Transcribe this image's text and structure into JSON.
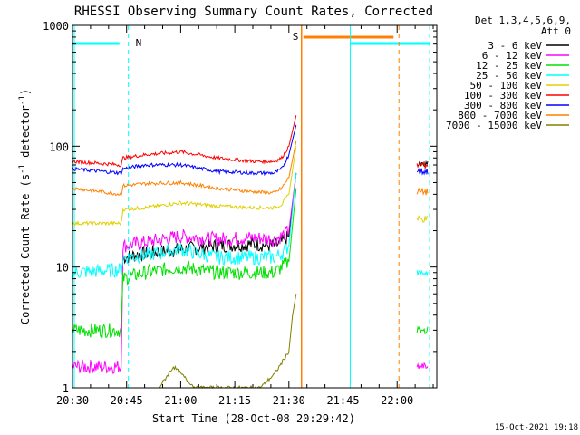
{
  "chart_data": {
    "type": "line",
    "title": "RHESSI Observing Summary Count Rates, Corrected",
    "xlabel": "Start Time (28-Oct-08 20:29:42)",
    "ylabel_pre": "Corrected Count Rate (s",
    "ylabel_sup": "-1",
    "ylabel_mid": " detector",
    "ylabel_sup2": "-1",
    "ylabel_post": ")",
    "yscale": "log",
    "ylim": [
      1,
      1000
    ],
    "xlim_min": [
      0,
      101
    ],
    "x_ticks": [
      {
        "label": "20:30",
        "min": 0
      },
      {
        "label": "20:45",
        "min": 15
      },
      {
        "label": "21:00",
        "min": 30
      },
      {
        "label": "21:15",
        "min": 45
      },
      {
        "label": "21:30",
        "min": 60
      },
      {
        "label": "21:45",
        "min": 75
      },
      {
        "label": "22:00",
        "min": 90
      }
    ],
    "y_ticks": [
      {
        "label": "1",
        "value": 1
      },
      {
        "label": "10",
        "value": 10
      },
      {
        "label": "100",
        "value": 100
      },
      {
        "label": "1000",
        "value": 1000
      }
    ],
    "legend_header": [
      "Det 1,3,4,5,6,9,",
      "Att 0"
    ],
    "series": [
      {
        "name": "3 - 6 keV",
        "color": "#000000",
        "points": [
          [
            14,
            12
          ],
          [
            20,
            13
          ],
          [
            30,
            14
          ],
          [
            40,
            15
          ],
          [
            50,
            15.5
          ],
          [
            56,
            15
          ],
          [
            58,
            16
          ],
          [
            60,
            18
          ],
          [
            62,
            60
          ]
        ]
      },
      {
        "name": "6 - 12 keV",
        "color": "#ff00ff",
        "points": [
          [
            0,
            1.5
          ],
          [
            13.5,
            1.5
          ],
          [
            14,
            15
          ],
          [
            20,
            16
          ],
          [
            30,
            18
          ],
          [
            40,
            17
          ],
          [
            50,
            17.5
          ],
          [
            56,
            17
          ],
          [
            58,
            18
          ],
          [
            60,
            20
          ],
          [
            62,
            60
          ]
        ]
      },
      {
        "name": "12 - 25 keV",
        "color": "#00e000",
        "points": [
          [
            0,
            3
          ],
          [
            13.5,
            3
          ],
          [
            14,
            8
          ],
          [
            20,
            9
          ],
          [
            30,
            10
          ],
          [
            40,
            9
          ],
          [
            50,
            9
          ],
          [
            56,
            9
          ],
          [
            58,
            10
          ],
          [
            60,
            11
          ],
          [
            62,
            45
          ]
        ]
      },
      {
        "name": "25 - 50 keV",
        "color": "#00ffff",
        "points": [
          [
            0,
            9
          ],
          [
            13.5,
            9.5
          ],
          [
            14,
            12
          ],
          [
            20,
            12.5
          ],
          [
            30,
            14
          ],
          [
            40,
            12
          ],
          [
            50,
            12
          ],
          [
            56,
            12
          ],
          [
            58,
            13
          ],
          [
            60,
            15
          ],
          [
            62,
            60
          ]
        ]
      },
      {
        "name": "50 - 100 keV",
        "color": "#e0d000",
        "points": [
          [
            0,
            23
          ],
          [
            13.5,
            23
          ],
          [
            14,
            30
          ],
          [
            20,
            31
          ],
          [
            30,
            34
          ],
          [
            40,
            32
          ],
          [
            50,
            31
          ],
          [
            56,
            31
          ],
          [
            58,
            33
          ],
          [
            60,
            40
          ],
          [
            62,
            100
          ]
        ]
      },
      {
        "name": "100 - 300 keV",
        "color": "#ff0000",
        "points": [
          [
            0,
            75
          ],
          [
            13.5,
            70
          ],
          [
            14,
            80
          ],
          [
            20,
            85
          ],
          [
            30,
            90
          ],
          [
            40,
            80
          ],
          [
            50,
            75
          ],
          [
            56,
            75
          ],
          [
            58,
            80
          ],
          [
            60,
            100
          ],
          [
            62,
            180
          ]
        ]
      },
      {
        "name": "300 - 800 keV",
        "color": "#0000ff",
        "points": [
          [
            0,
            65
          ],
          [
            13.5,
            60
          ],
          [
            14,
            65
          ],
          [
            20,
            70
          ],
          [
            30,
            70
          ],
          [
            40,
            62
          ],
          [
            50,
            60
          ],
          [
            56,
            60
          ],
          [
            58,
            65
          ],
          [
            60,
            85
          ],
          [
            62,
            150
          ]
        ]
      },
      {
        "name": "800 - 7000 keV",
        "color": "#ff8000",
        "points": [
          [
            0,
            45
          ],
          [
            13.5,
            40
          ],
          [
            14,
            47
          ],
          [
            20,
            49
          ],
          [
            30,
            50
          ],
          [
            40,
            45
          ],
          [
            50,
            42
          ],
          [
            56,
            41
          ],
          [
            58,
            45
          ],
          [
            60,
            55
          ],
          [
            62,
            110
          ]
        ]
      },
      {
        "name": "7000 - 15000 keV",
        "color": "#808000",
        "points": [
          [
            24,
            1
          ],
          [
            28,
            1.5
          ],
          [
            34,
            1
          ],
          [
            46,
            1
          ],
          [
            52,
            1
          ],
          [
            56,
            1.3
          ],
          [
            60,
            2
          ],
          [
            61,
            4
          ],
          [
            62,
            6
          ]
        ]
      }
    ],
    "segments_after": [
      {
        "color": "#000000",
        "value": 70
      },
      {
        "color": "#ff00ff",
        "value": 1.5
      },
      {
        "color": "#00e000",
        "value": 3
      },
      {
        "color": "#00ffff",
        "value": 9
      },
      {
        "color": "#e0d000",
        "value": 25
      },
      {
        "color": "#ff0000",
        "value": 70
      },
      {
        "color": "#0000ff",
        "value": 62
      },
      {
        "color": "#ff8000",
        "value": 42
      }
    ],
    "annotations": {
      "night_flag": "N",
      "saa_flag": "S",
      "night_color": "#00ffff",
      "saa_color": "#ff8000"
    },
    "footer": "15-Oct-2021 19:18"
  }
}
